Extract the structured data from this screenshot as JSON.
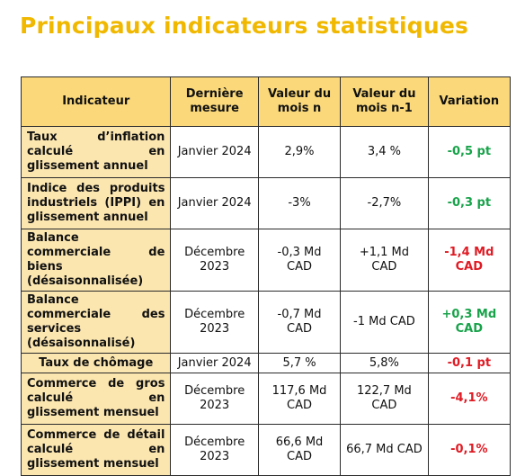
{
  "title": "Principaux indicateurs statistiques",
  "headers": [
    "Indicateur",
    "Dernière mesure",
    "Valeur du mois n",
    "Valeur du mois n-1",
    "Variation"
  ],
  "rows": [
    {
      "indicator": "Taux d’inflation calculé en glissement annuel",
      "date": "Janvier 2024",
      "value_n": "2,9%",
      "value_n1": "3,4 %",
      "variation": "-0,5 pt",
      "trend": "green"
    },
    {
      "indicator": "Indice des produits industriels (IPPI) en glissement annuel",
      "date": "Janvier 2024",
      "value_n": "-3%",
      "value_n1": "-2,7%",
      "variation": "-0,3 pt",
      "trend": "green"
    },
    {
      "indicator": "Balance commerciale de biens (désaisonnalisée)",
      "date": "Décembre 2023",
      "value_n": "-0,3 Md CAD",
      "value_n1": "+1,1 Md CAD",
      "variation": "-1,4 Md CAD",
      "trend": "red"
    },
    {
      "indicator": "Balance commerciale des services (désaisonnalisé)",
      "date": "Décembre 2023",
      "value_n": "-0,7 Md CAD",
      "value_n1": "-1 Md CAD",
      "variation": "+0,3 Md CAD",
      "trend": "green"
    },
    {
      "indicator": "Taux de chômage",
      "date": "Janvier 2024",
      "value_n": "5,7 %",
      "value_n1": "5,8%",
      "variation": "-0,1 pt",
      "trend": "red"
    },
    {
      "indicator": "Commerce de gros calculé en glissement mensuel",
      "date": "Décembre 2023",
      "value_n": "117,6 Md CAD",
      "value_n1": "122,7 Md CAD",
      "variation": "-4,1%",
      "trend": "red"
    },
    {
      "indicator": "Commerce de détail calculé en glissement mensuel",
      "date": "Décembre 2023",
      "value_n": "66,6 Md CAD",
      "value_n1": "66,7 Md CAD",
      "variation": "-0,1%",
      "trend": "red"
    }
  ],
  "colors": {
    "title": "#f0b800",
    "header_bg": "#fbd97a",
    "indicator_bg": "#fbe6b0",
    "positive": "#18a34a",
    "negative": "#e01b24"
  }
}
